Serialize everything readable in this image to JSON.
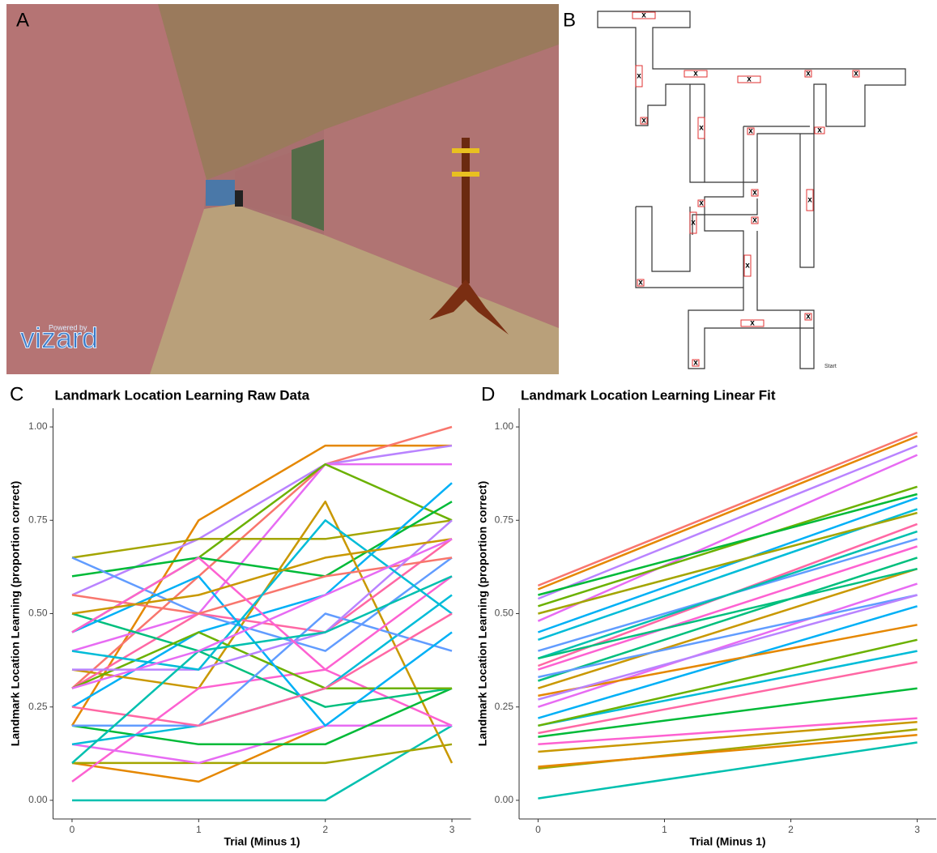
{
  "image_panel": {
    "label": "A",
    "logo": "vizard",
    "logo_caption": "Powered by"
  },
  "maze_panel": {
    "label": "B",
    "marker": "x",
    "start": "Start"
  },
  "chart_data": [
    {
      "type": "line",
      "panel_label": "C",
      "title": "Landmark Location Learning Raw Data",
      "x_label": "Trial (Minus 1)",
      "y_label": "Landmark Location Learning (proportion correct)",
      "x": [
        0,
        1,
        2,
        3
      ],
      "xlim": [
        -0.15,
        3.15
      ],
      "xticks": [
        0,
        1,
        2,
        3
      ],
      "ylim": [
        -0.05,
        1.05
      ],
      "yticks": [
        {
          "value": 0,
          "label": "0.00"
        },
        {
          "value": 0.25,
          "label": "0.25"
        },
        {
          "value": 0.5,
          "label": "0.50"
        },
        {
          "value": 0.75,
          "label": "0.75"
        },
        {
          "value": 1,
          "label": "1.00"
        }
      ],
      "series": [
        {
          "color": "#E58700",
          "values": [
            0.2,
            0.75,
            0.95,
            0.95
          ]
        },
        {
          "color": "#F8766D",
          "values": [
            0.3,
            0.6,
            0.9,
            1.0
          ]
        },
        {
          "color": "#B983FF",
          "values": [
            0.55,
            0.7,
            0.9,
            0.95
          ]
        },
        {
          "color": "#E76BF3",
          "values": [
            0.4,
            0.5,
            0.9,
            0.9
          ]
        },
        {
          "color": "#A3A500",
          "values": [
            0.65,
            0.7,
            0.7,
            0.75
          ]
        },
        {
          "color": "#6BB100",
          "values": [
            0.45,
            0.65,
            0.9,
            0.75
          ]
        },
        {
          "color": "#00BA38",
          "values": [
            0.6,
            0.65,
            0.6,
            0.8
          ]
        },
        {
          "color": "#00B0F6",
          "values": [
            0.25,
            0.45,
            0.55,
            0.85
          ]
        },
        {
          "color": "#619CFF",
          "values": [
            0.65,
            0.5,
            0.4,
            0.65
          ]
        },
        {
          "color": "#00C0AF",
          "values": [
            0.0,
            0.0,
            0.0,
            0.2
          ]
        },
        {
          "color": "#E58700",
          "values": [
            0.1,
            0.05,
            0.2,
            0.2
          ]
        },
        {
          "color": "#A3A500",
          "values": [
            0.1,
            0.1,
            0.1,
            0.15
          ]
        },
        {
          "color": "#C99800",
          "values": [
            0.35,
            0.3,
            0.8,
            0.1
          ]
        },
        {
          "color": "#FD61D1",
          "values": [
            0.05,
            0.3,
            0.35,
            0.2
          ]
        },
        {
          "color": "#E76BF3",
          "values": [
            0.15,
            0.1,
            0.2,
            0.2
          ]
        },
        {
          "color": "#00BA38",
          "values": [
            0.2,
            0.15,
            0.15,
            0.3
          ]
        },
        {
          "color": "#00BCD8",
          "values": [
            0.15,
            0.2,
            0.3,
            0.55
          ]
        },
        {
          "color": "#FF67A4",
          "values": [
            0.3,
            0.5,
            0.45,
            0.7
          ]
        },
        {
          "color": "#00BF7D",
          "values": [
            0.5,
            0.4,
            0.25,
            0.3
          ]
        },
        {
          "color": "#619CFF",
          "values": [
            0.2,
            0.2,
            0.5,
            0.4
          ]
        },
        {
          "color": "#6BB100",
          "values": [
            0.3,
            0.45,
            0.3,
            0.3
          ]
        },
        {
          "color": "#00B0F6",
          "values": [
            0.45,
            0.6,
            0.2,
            0.45
          ]
        },
        {
          "color": "#F8766D",
          "values": [
            0.55,
            0.5,
            0.6,
            0.65
          ]
        },
        {
          "color": "#B983FF",
          "values": [
            0.35,
            0.35,
            0.45,
            0.75
          ]
        },
        {
          "color": "#FD61D1",
          "values": [
            0.45,
            0.65,
            0.35,
            0.6
          ]
        },
        {
          "color": "#00BCD8",
          "values": [
            0.4,
            0.35,
            0.75,
            0.5
          ]
        },
        {
          "color": "#C99800",
          "values": [
            0.5,
            0.55,
            0.65,
            0.7
          ]
        },
        {
          "color": "#FF67A4",
          "values": [
            0.25,
            0.2,
            0.3,
            0.5
          ]
        },
        {
          "color": "#00C0AF",
          "values": [
            0.1,
            0.4,
            0.45,
            0.6
          ]
        },
        {
          "color": "#E76BF3",
          "values": [
            0.3,
            0.4,
            0.55,
            0.7
          ]
        }
      ]
    },
    {
      "type": "line",
      "panel_label": "D",
      "title": "Landmark Location Learning Linear Fit",
      "x_label": "Trial (Minus 1)",
      "y_label": "Landmark Location Learning (proportion correct)",
      "x": [
        0,
        3
      ],
      "xlim": [
        -0.15,
        3.15
      ],
      "xticks": [
        0,
        1,
        2,
        3
      ],
      "ylim": [
        -0.05,
        1.05
      ],
      "yticks": [
        {
          "value": 0,
          "label": "0.00"
        },
        {
          "value": 0.25,
          "label": "0.25"
        },
        {
          "value": 0.5,
          "label": "0.50"
        },
        {
          "value": 0.75,
          "label": "0.75"
        },
        {
          "value": 1,
          "label": "1.00"
        }
      ],
      "series": [
        {
          "color": "#F8766D",
          "values": [
            0.575,
            0.985
          ]
        },
        {
          "color": "#E58700",
          "values": [
            0.565,
            0.975
          ]
        },
        {
          "color": "#B983FF",
          "values": [
            0.54,
            0.95
          ]
        },
        {
          "color": "#E76BF3",
          "values": [
            0.48,
            0.925
          ]
        },
        {
          "color": "#6BB100",
          "values": [
            0.52,
            0.84
          ]
        },
        {
          "color": "#00BA38",
          "values": [
            0.55,
            0.82
          ]
        },
        {
          "color": "#00B0F6",
          "values": [
            0.45,
            0.81
          ]
        },
        {
          "color": "#00BCD8",
          "values": [
            0.43,
            0.78
          ]
        },
        {
          "color": "#A3A500",
          "values": [
            0.5,
            0.77
          ]
        },
        {
          "color": "#FF67A4",
          "values": [
            0.36,
            0.74
          ]
        },
        {
          "color": "#619CFF",
          "values": [
            0.4,
            0.7
          ]
        },
        {
          "color": "#00C0AF",
          "values": [
            0.38,
            0.72
          ]
        },
        {
          "color": "#FD61D1",
          "values": [
            0.35,
            0.68
          ]
        },
        {
          "color": "#C99800",
          "values": [
            0.3,
            0.62
          ]
        },
        {
          "color": "#00BF7D",
          "values": [
            0.32,
            0.65
          ]
        },
        {
          "color": "#E76BF3",
          "values": [
            0.25,
            0.58
          ]
        },
        {
          "color": "#619CFF",
          "values": [
            0.33,
            0.55
          ]
        },
        {
          "color": "#00B0F6",
          "values": [
            0.22,
            0.52
          ]
        },
        {
          "color": "#E58700",
          "values": [
            0.28,
            0.47
          ]
        },
        {
          "color": "#00BCD8",
          "values": [
            0.2,
            0.4
          ]
        },
        {
          "color": "#6BB100",
          "values": [
            0.2,
            0.43
          ]
        },
        {
          "color": "#FF67A4",
          "values": [
            0.18,
            0.37
          ]
        },
        {
          "color": "#00BA38",
          "values": [
            0.17,
            0.3
          ]
        },
        {
          "color": "#FD61D1",
          "values": [
            0.15,
            0.22
          ]
        },
        {
          "color": "#C99800",
          "values": [
            0.13,
            0.21
          ]
        },
        {
          "color": "#A3A500",
          "values": [
            0.085,
            0.19
          ]
        },
        {
          "color": "#00C0AF",
          "values": [
            0.005,
            0.155
          ]
        },
        {
          "color": "#E58700",
          "values": [
            0.09,
            0.175
          ]
        },
        {
          "color": "#B983FF",
          "values": [
            0.27,
            0.55
          ]
        },
        {
          "color": "#00BF7D",
          "values": [
            0.38,
            0.62
          ]
        }
      ]
    }
  ]
}
